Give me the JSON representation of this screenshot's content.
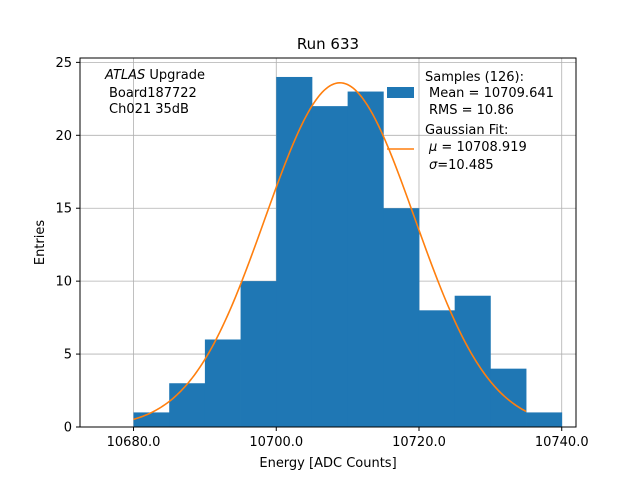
{
  "chart_data": {
    "type": "bar",
    "title": "Run 633",
    "xlabel": "Energy [ADC Counts]",
    "ylabel": "Entries",
    "xlim": [
      10672.5,
      10742
    ],
    "ylim": [
      0,
      25.3
    ],
    "xticks": [
      10680,
      10700,
      10720,
      10740
    ],
    "xtick_labels": [
      "10680.0",
      "10700.0",
      "10720.0",
      "10740.0"
    ],
    "yticks": [
      0,
      5,
      10,
      15,
      20,
      25
    ],
    "ytick_labels": [
      "0",
      "5",
      "10",
      "15",
      "20",
      "25"
    ],
    "grid": true,
    "bin_edges": [
      10680,
      10685,
      10690,
      10695,
      10700,
      10705,
      10710,
      10715,
      10720,
      10725,
      10730,
      10735,
      10740
    ],
    "counts": [
      1,
      3,
      6,
      10,
      24,
      22,
      23,
      15,
      8,
      9,
      4,
      1
    ],
    "bar_color": "#1f77b4",
    "fit_color": "#ff7f0e",
    "fit": {
      "mu": 10708.919,
      "sigma": 10.485,
      "x_range": [
        10680,
        10735
      ],
      "amplitude": 23.6
    },
    "annotation": {
      "line1_italic": "ATLAS",
      "line1_rest": " Upgrade",
      "line2": "Board187722",
      "line3": "Ch021 35dB"
    },
    "legend": {
      "position": "top-right",
      "samples_title": "Samples (126):",
      "samples_mean": "Mean = 10709.641",
      "samples_rms": "RMS = 10.86",
      "fit_title": "Gaussian Fit:",
      "fit_mu_sym": "μ",
      "fit_mu_val": " = 10708.919",
      "fit_sigma_sym": "σ",
      "fit_sigma_val": "=10.485"
    }
  }
}
